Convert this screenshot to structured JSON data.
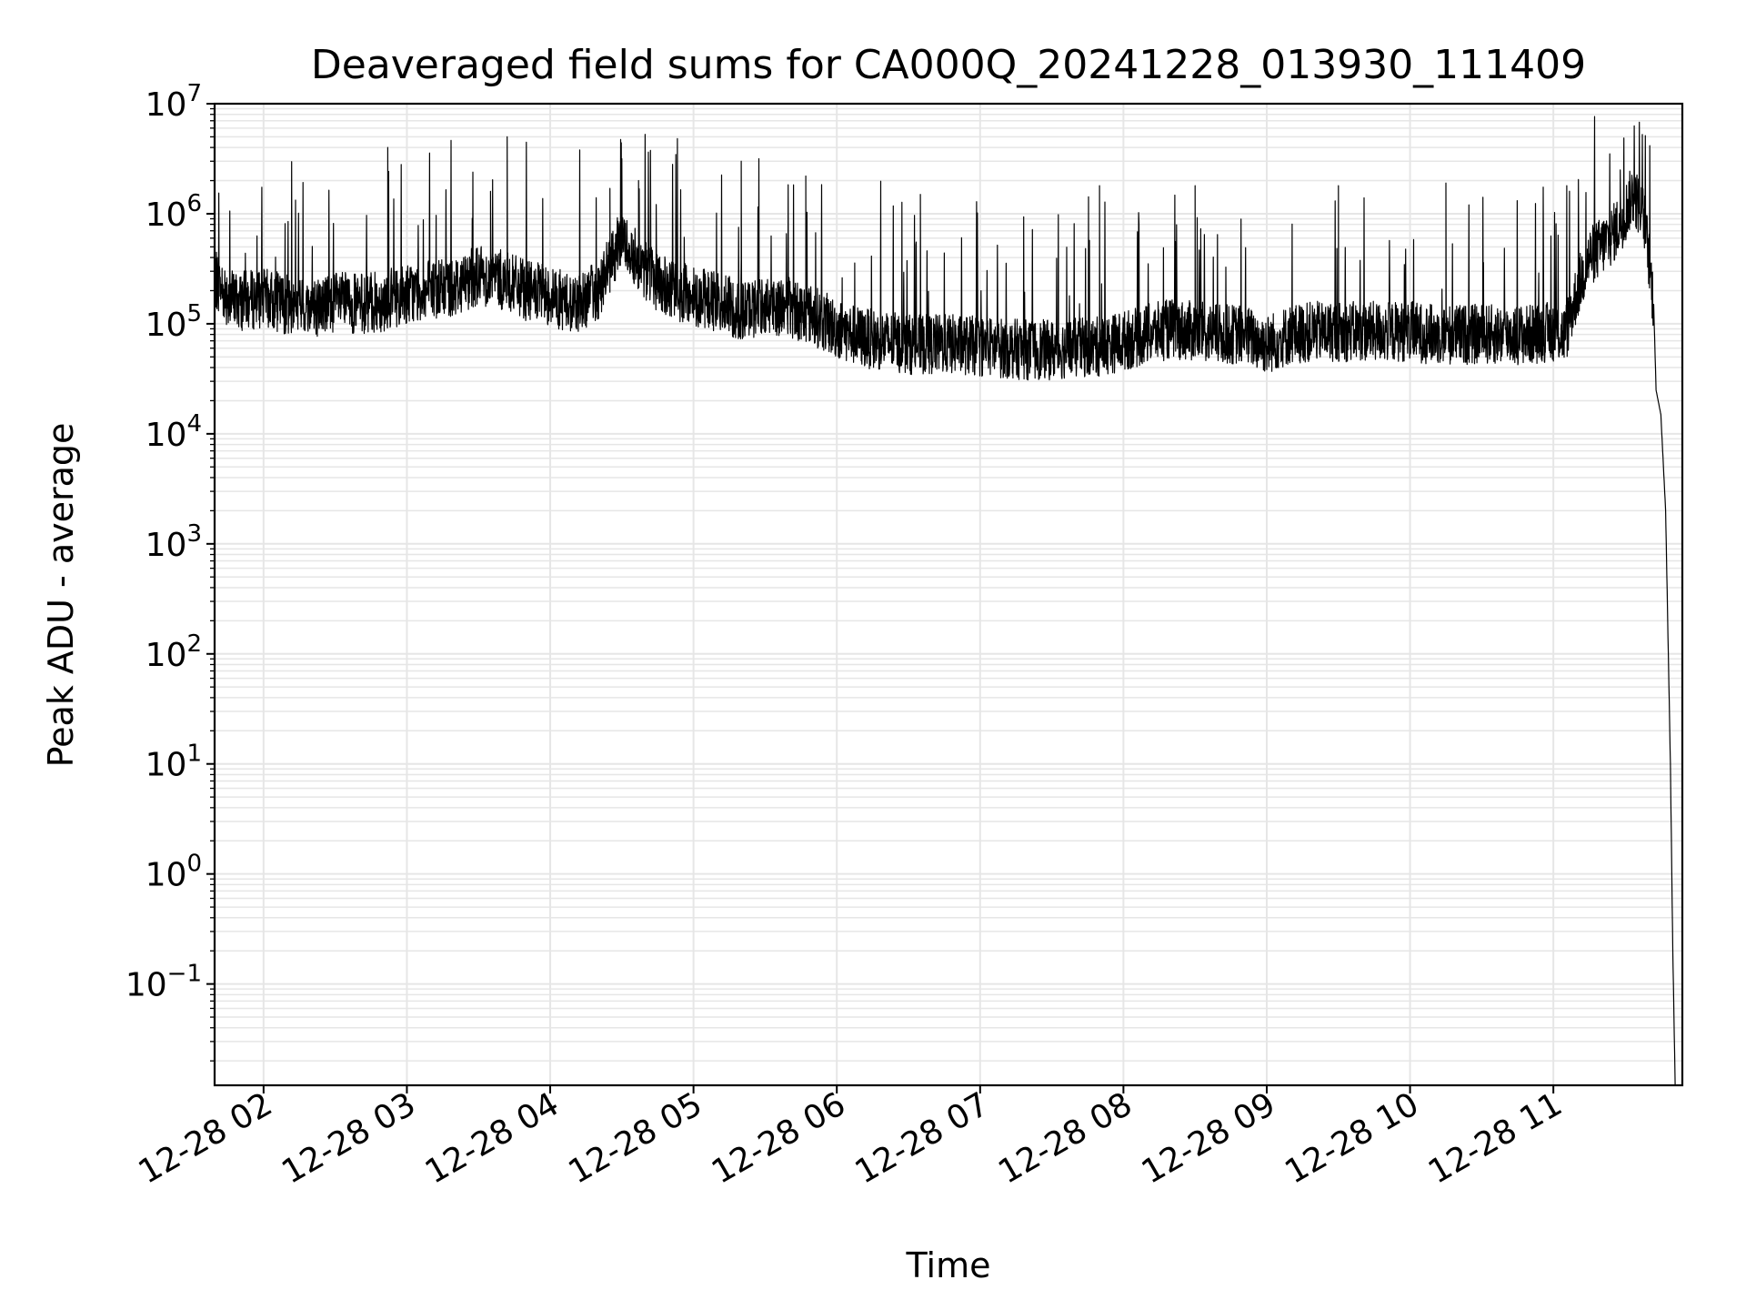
{
  "chart_data": {
    "type": "line",
    "title": "Deaveraged field sums for CA000Q_20241228_013930_111409",
    "xlabel": "Time",
    "ylabel": "Peak ADU - average",
    "yscale": "log",
    "ylim": [
      0.012,
      10000000
    ],
    "xlim": [
      "12-28 01:39:30",
      "12-28 11:54:00"
    ],
    "x_ticks": [
      "12-28 02",
      "12-28 03",
      "12-28 04",
      "12-28 05",
      "12-28 06",
      "12-28 07",
      "12-28 08",
      "12-28 09",
      "12-28 10",
      "12-28 11"
    ],
    "y_ticks": [
      {
        "value": 0.1,
        "base": "10",
        "exp": "−1"
      },
      {
        "value": 1,
        "base": "10",
        "exp": "0"
      },
      {
        "value": 10,
        "base": "10",
        "exp": "1"
      },
      {
        "value": 100,
        "base": "10",
        "exp": "2"
      },
      {
        "value": 1000,
        "base": "10",
        "exp": "3"
      },
      {
        "value": 10000,
        "base": "10",
        "exp": "4"
      },
      {
        "value": 100000,
        "base": "10",
        "exp": "5"
      },
      {
        "value": 1000000,
        "base": "10",
        "exp": "6"
      },
      {
        "value": 10000000,
        "base": "10",
        "exp": "7"
      }
    ],
    "grid": true,
    "grid_minor": true,
    "legend": "none",
    "series_color": "#000000",
    "grid_color": "#e6e6e6",
    "series": [
      {
        "points": [
          [
            "12-28 01:39:30",
            250000
          ],
          [
            "12-28 01:45",
            180000
          ],
          [
            "12-28 01:50",
            160000
          ],
          [
            "12-28 02:00",
            170000
          ],
          [
            "12-28 02:10",
            150000
          ],
          [
            "12-28 02:20",
            140000
          ],
          [
            "12-28 02:30",
            160000
          ],
          [
            "12-28 02:40",
            150000
          ],
          [
            "12-28 02:50",
            160000
          ],
          [
            "12-28 03:00",
            190000
          ],
          [
            "12-28 03:10",
            200000
          ],
          [
            "12-28 03:20",
            220000
          ],
          [
            "12-28 03:30",
            280000
          ],
          [
            "12-28 03:40",
            250000
          ],
          [
            "12-28 03:50",
            200000
          ],
          [
            "12-28 04:00",
            180000
          ],
          [
            "12-28 04:10",
            150000
          ],
          [
            "12-28 04:20",
            200000
          ],
          [
            "12-28 04:30",
            600000
          ],
          [
            "12-28 04:40",
            300000
          ],
          [
            "12-28 04:50",
            200000
          ],
          [
            "12-28 05:00",
            180000
          ],
          [
            "12-28 05:10",
            160000
          ],
          [
            "12-28 05:20",
            130000
          ],
          [
            "12-28 05:30",
            150000
          ],
          [
            "12-28 05:40",
            140000
          ],
          [
            "12-28 05:50",
            120000
          ],
          [
            "12-28 06:00",
            90000
          ],
          [
            "12-28 06:10",
            75000
          ],
          [
            "12-28 06:20",
            70000
          ],
          [
            "12-28 06:30",
            65000
          ],
          [
            "12-28 06:40",
            65000
          ],
          [
            "12-28 06:50",
            65000
          ],
          [
            "12-28 07:00",
            62000
          ],
          [
            "12-28 07:10",
            60000
          ],
          [
            "12-28 07:20",
            58000
          ],
          [
            "12-28 07:30",
            58000
          ],
          [
            "12-28 07:40",
            60000
          ],
          [
            "12-28 07:50",
            62000
          ],
          [
            "12-28 08:00",
            70000
          ],
          [
            "12-28 08:10",
            80000
          ],
          [
            "12-28 08:20",
            90000
          ],
          [
            "12-28 08:30",
            85000
          ],
          [
            "12-28 08:40",
            80000
          ],
          [
            "12-28 08:50",
            80000
          ],
          [
            "12-28 09:00",
            65000
          ],
          [
            "12-28 09:10",
            80000
          ],
          [
            "12-28 09:20",
            85000
          ],
          [
            "12-28 09:30",
            85000
          ],
          [
            "12-28 09:40",
            85000
          ],
          [
            "12-28 09:50",
            85000
          ],
          [
            "12-28 10:00",
            85000
          ],
          [
            "12-28 10:10",
            80000
          ],
          [
            "12-28 10:20",
            80000
          ],
          [
            "12-28 10:30",
            80000
          ],
          [
            "12-28 10:40",
            80000
          ],
          [
            "12-28 10:50",
            80000
          ],
          [
            "12-28 11:00",
            85000
          ],
          [
            "12-28 11:05",
            80000
          ],
          [
            "12-28 11:10",
            200000
          ],
          [
            "12-28 11:15",
            400000
          ],
          [
            "12-28 11:20",
            500000
          ],
          [
            "12-28 11:25",
            650000
          ],
          [
            "12-28 11:30",
            1000000
          ],
          [
            "12-28 11:33",
            1500000
          ],
          [
            "12-28 11:36",
            1200000
          ],
          [
            "12-28 11:38",
            900000
          ],
          [
            "12-28 11:40",
            400000
          ],
          [
            "12-28 11:42",
            150000
          ],
          [
            "12-28 11:43",
            25000
          ],
          [
            "12-28 11:45",
            15000
          ],
          [
            "12-28 11:47",
            2000
          ],
          [
            "12-28 11:49",
            10
          ],
          [
            "12-28 11:50",
            0.2
          ],
          [
            "12-28 11:51",
            0.012
          ]
        ],
        "spikes": [
          [
            "12-28 02:52",
            4000000
          ],
          [
            "12-28 03:42",
            5000000
          ],
          [
            "12-28 03:35",
            1600000
          ],
          [
            "12-28 04:25",
            1700000
          ],
          [
            "12-28 04:37",
            2000000
          ],
          [
            "12-28 05:20",
            3000000
          ],
          [
            "12-28 05:47",
            2200000
          ],
          [
            "12-28 06:35",
            1500000
          ],
          [
            "12-28 07:50",
            1800000
          ],
          [
            "12-28 08:30",
            1800000
          ],
          [
            "12-28 09:30",
            1800000
          ],
          [
            "12-28 10:15",
            1900000
          ],
          [
            "12-28 11:28",
            2500000
          ]
        ]
      }
    ]
  }
}
